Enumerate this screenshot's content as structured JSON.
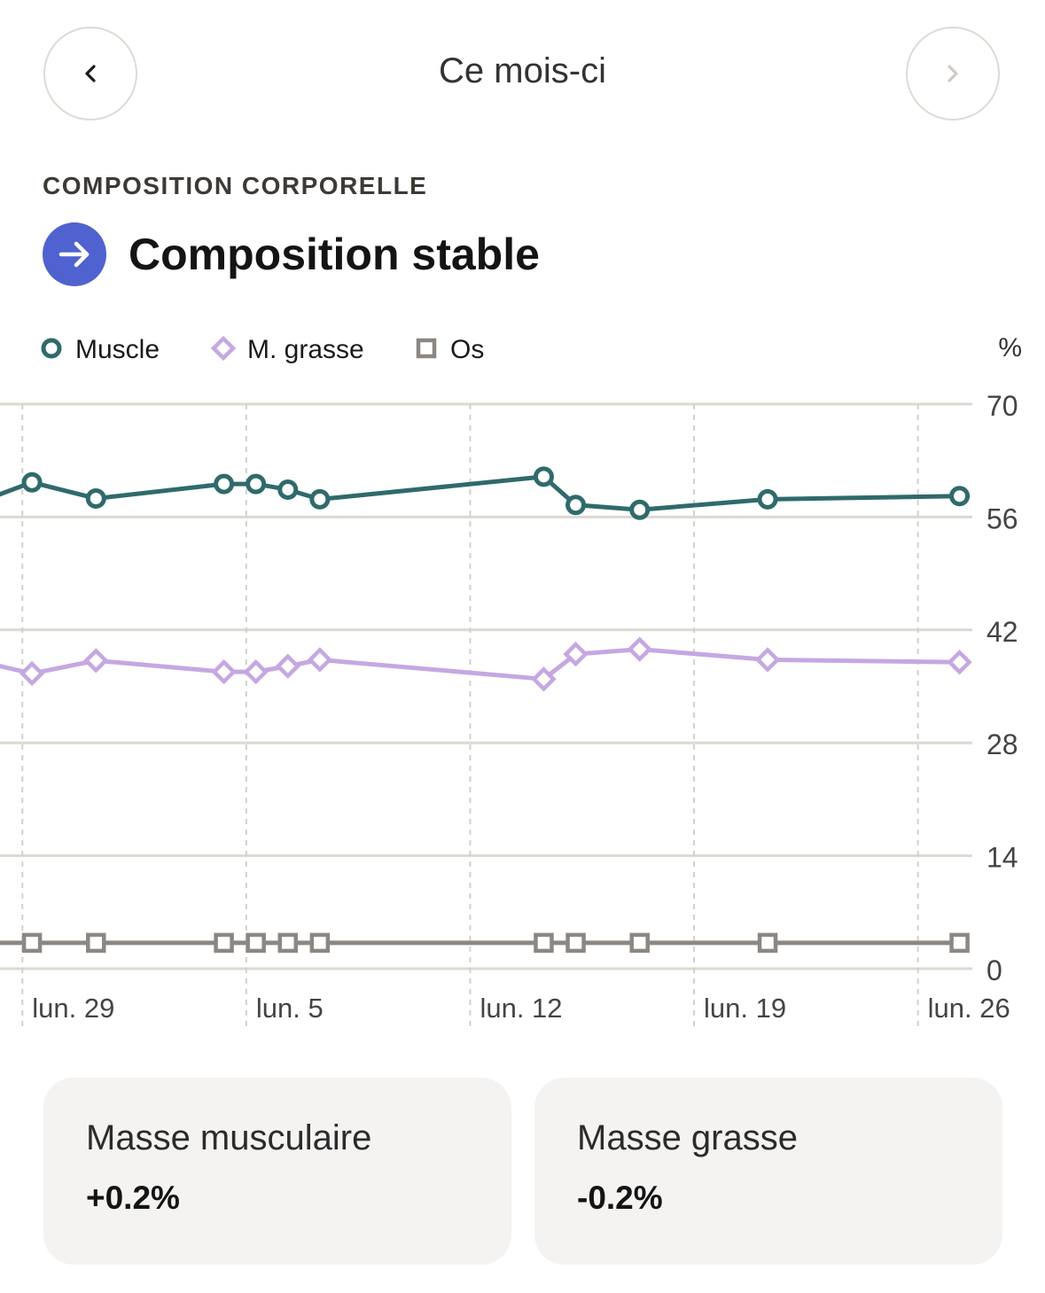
{
  "header": {
    "title": "Ce mois-ci",
    "prev_icon": "chevron-left-icon",
    "next_icon": "chevron-right-icon"
  },
  "section": {
    "label": "COMPOSITION CORPORELLE",
    "status": "Composition stable",
    "status_icon": "arrow-right-icon",
    "status_color": "#4f62cf"
  },
  "chart_data": {
    "type": "line",
    "unit": "%",
    "ylim": [
      0,
      70
    ],
    "yticks": [
      0,
      14,
      28,
      42,
      56,
      70
    ],
    "xlim": [
      -0.7,
      29.7
    ],
    "x_ticks": [
      {
        "day": 0,
        "label": "lun. 29"
      },
      {
        "day": 7,
        "label": "lun. 5"
      },
      {
        "day": 14,
        "label": "lun. 12"
      },
      {
        "day": 21,
        "label": "lun. 19"
      },
      {
        "day": 28,
        "label": "lun. 26"
      }
    ],
    "grid": true,
    "legend": "top-left",
    "series": [
      {
        "name": "Muscle",
        "color": "#2f6a6c",
        "marker": "circle",
        "points": [
          {
            "x": -2,
            "y": 56.9
          },
          {
            "x": 0.3,
            "y": 60.3
          },
          {
            "x": 2.3,
            "y": 58.3
          },
          {
            "x": 6.3,
            "y": 60.1
          },
          {
            "x": 7.3,
            "y": 60.1
          },
          {
            "x": 8.3,
            "y": 59.4
          },
          {
            "x": 9.3,
            "y": 58.2
          },
          {
            "x": 16.3,
            "y": 61.0
          },
          {
            "x": 17.3,
            "y": 57.5
          },
          {
            "x": 19.3,
            "y": 56.9
          },
          {
            "x": 23.3,
            "y": 58.2
          },
          {
            "x": 29.3,
            "y": 58.6
          }
        ]
      },
      {
        "name": "M. grasse",
        "color": "#c6a7e2",
        "marker": "diamond",
        "points": [
          {
            "x": -2,
            "y": 38.7
          },
          {
            "x": 0.3,
            "y": 36.6
          },
          {
            "x": 2.3,
            "y": 38.2
          },
          {
            "x": 6.3,
            "y": 36.8
          },
          {
            "x": 7.3,
            "y": 36.8
          },
          {
            "x": 8.3,
            "y": 37.5
          },
          {
            "x": 9.3,
            "y": 38.3
          },
          {
            "x": 16.3,
            "y": 35.9
          },
          {
            "x": 17.3,
            "y": 39.0
          },
          {
            "x": 19.3,
            "y": 39.6
          },
          {
            "x": 23.3,
            "y": 38.3
          },
          {
            "x": 29.3,
            "y": 38.0
          }
        ]
      },
      {
        "name": "Os",
        "color": "#8c8782",
        "marker": "square",
        "points": [
          {
            "x": -2,
            "y": 3.2
          },
          {
            "x": 0.3,
            "y": 3.2
          },
          {
            "x": 2.3,
            "y": 3.2
          },
          {
            "x": 6.3,
            "y": 3.2
          },
          {
            "x": 7.3,
            "y": 3.2
          },
          {
            "x": 8.3,
            "y": 3.2
          },
          {
            "x": 9.3,
            "y": 3.2
          },
          {
            "x": 16.3,
            "y": 3.2
          },
          {
            "x": 17.3,
            "y": 3.2
          },
          {
            "x": 19.3,
            "y": 3.2
          },
          {
            "x": 23.3,
            "y": 3.2
          },
          {
            "x": 29.3,
            "y": 3.2
          }
        ]
      }
    ]
  },
  "cards": [
    {
      "label": "Masse musculaire",
      "value": "+0.2%"
    },
    {
      "label": "Masse grasse",
      "value": "-0.2%"
    }
  ]
}
